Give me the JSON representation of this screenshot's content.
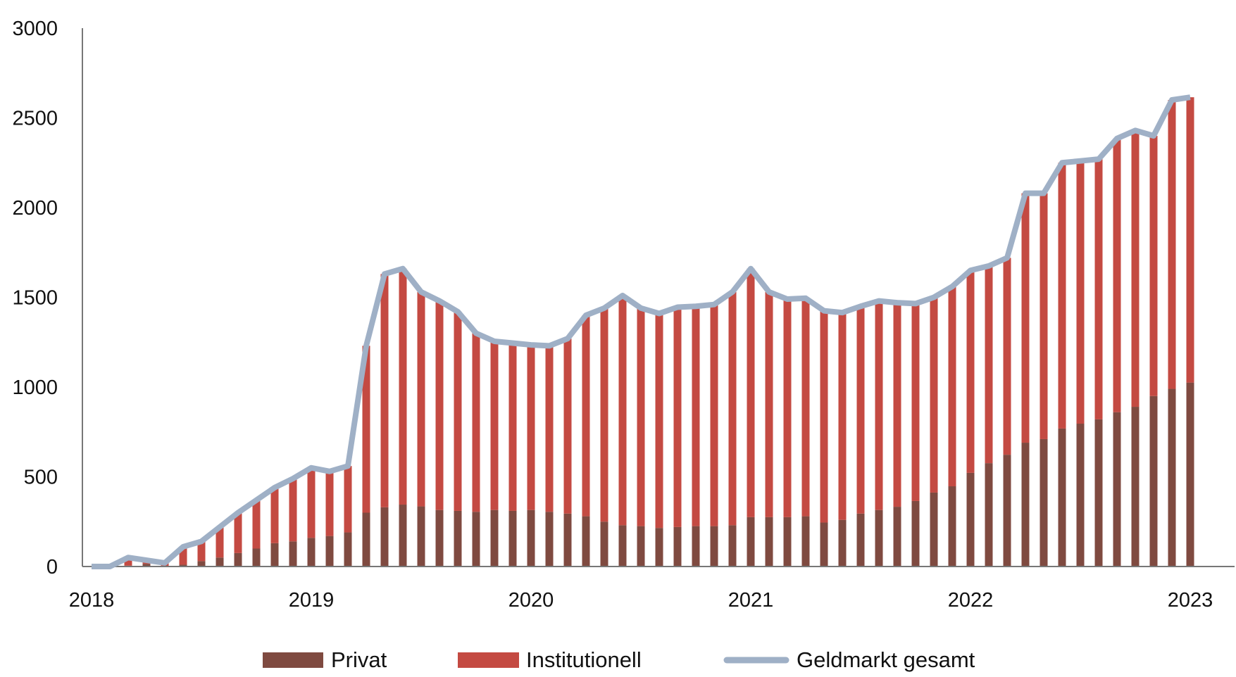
{
  "chart_data": {
    "type": "bar",
    "stacked": true,
    "title": "",
    "xlabel": "",
    "ylabel": "",
    "ylim": [
      0,
      3000
    ],
    "yticks": [
      "0",
      "500",
      "1000",
      "1500",
      "2000",
      "2500",
      "3000"
    ],
    "ytick_values": [
      0,
      500,
      1000,
      1500,
      2000,
      2500,
      3000
    ],
    "xticks": [
      "2018",
      "2019",
      "2020",
      "2021",
      "2022",
      "2023"
    ],
    "xtick_values": [
      "2018-01",
      "2019-01",
      "2020-01",
      "2021-01",
      "2022-01",
      "2023-01"
    ],
    "grid": false,
    "legend_placement": "bottom",
    "x": [
      "2018-01",
      "2018-02",
      "2018-03",
      "2018-04",
      "2018-05",
      "2018-06",
      "2018-07",
      "2018-08",
      "2018-09",
      "2018-10",
      "2018-11",
      "2018-12",
      "2019-01",
      "2019-02",
      "2019-03",
      "2019-04",
      "2019-05",
      "2019-06",
      "2019-07",
      "2019-08",
      "2019-09",
      "2019-10",
      "2019-11",
      "2019-12",
      "2020-01",
      "2020-02",
      "2020-03",
      "2020-04",
      "2020-05",
      "2020-06",
      "2020-07",
      "2020-08",
      "2020-09",
      "2020-10",
      "2020-11",
      "2020-12",
      "2021-01",
      "2021-02",
      "2021-03",
      "2021-04",
      "2021-05",
      "2021-06",
      "2021-07",
      "2021-08",
      "2021-09",
      "2021-10",
      "2021-11",
      "2021-12",
      "2022-01",
      "2022-02",
      "2022-03",
      "2022-04",
      "2022-05",
      "2022-06",
      "2022-07",
      "2022-08",
      "2022-09",
      "2022-10",
      "2022-11",
      "2022-12",
      "2023-01"
    ],
    "series": [
      {
        "name": "Privat",
        "kind": "bar",
        "color": "#7f4a40",
        "values": [
          0,
          0,
          5,
          15,
          0,
          10,
          30,
          50,
          75,
          100,
          130,
          140,
          160,
          170,
          190,
          300,
          330,
          345,
          335,
          315,
          310,
          305,
          315,
          310,
          315,
          305,
          295,
          280,
          250,
          230,
          225,
          215,
          220,
          225,
          225,
          230,
          275,
          275,
          275,
          280,
          245,
          260,
          295,
          315,
          333,
          365,
          412,
          447,
          522,
          576,
          623,
          690,
          710,
          769,
          796,
          820,
          860,
          890,
          950,
          990,
          1025
        ]
      },
      {
        "name": "Institutionell",
        "kind": "bar",
        "color": "#c44a42",
        "values": [
          0,
          0,
          45,
          20,
          20,
          100,
          110,
          170,
          225,
          270,
          310,
          350,
          390,
          360,
          370,
          930,
          1300,
          1315,
          1195,
          1165,
          1110,
          995,
          940,
          935,
          920,
          925,
          975,
          1120,
          1190,
          1280,
          1215,
          1195,
          1225,
          1225,
          1235,
          1300,
          1385,
          1255,
          1215,
          1215,
          1180,
          1155,
          1155,
          1165,
          1137,
          1100,
          1088,
          1113,
          1128,
          1099,
          1097,
          1390,
          1370,
          1481,
          1464,
          1450,
          1525,
          1540,
          1450,
          1610,
          1590
        ]
      },
      {
        "name": "Geldmarkt gesamt",
        "kind": "line",
        "color": "#9fb0c6",
        "values": [
          0,
          0,
          50,
          35,
          20,
          110,
          140,
          220,
          300,
          370,
          440,
          490,
          550,
          530,
          560,
          1230,
          1630,
          1660,
          1530,
          1480,
          1420,
          1300,
          1255,
          1245,
          1235,
          1230,
          1270,
          1400,
          1440,
          1510,
          1440,
          1410,
          1445,
          1450,
          1460,
          1530,
          1660,
          1530,
          1490,
          1495,
          1425,
          1415,
          1450,
          1480,
          1470,
          1465,
          1500,
          1560,
          1650,
          1675,
          1720,
          2080,
          2080,
          2250,
          2260,
          2270,
          2385,
          2430,
          2400,
          2600,
          2615
        ]
      }
    ]
  }
}
